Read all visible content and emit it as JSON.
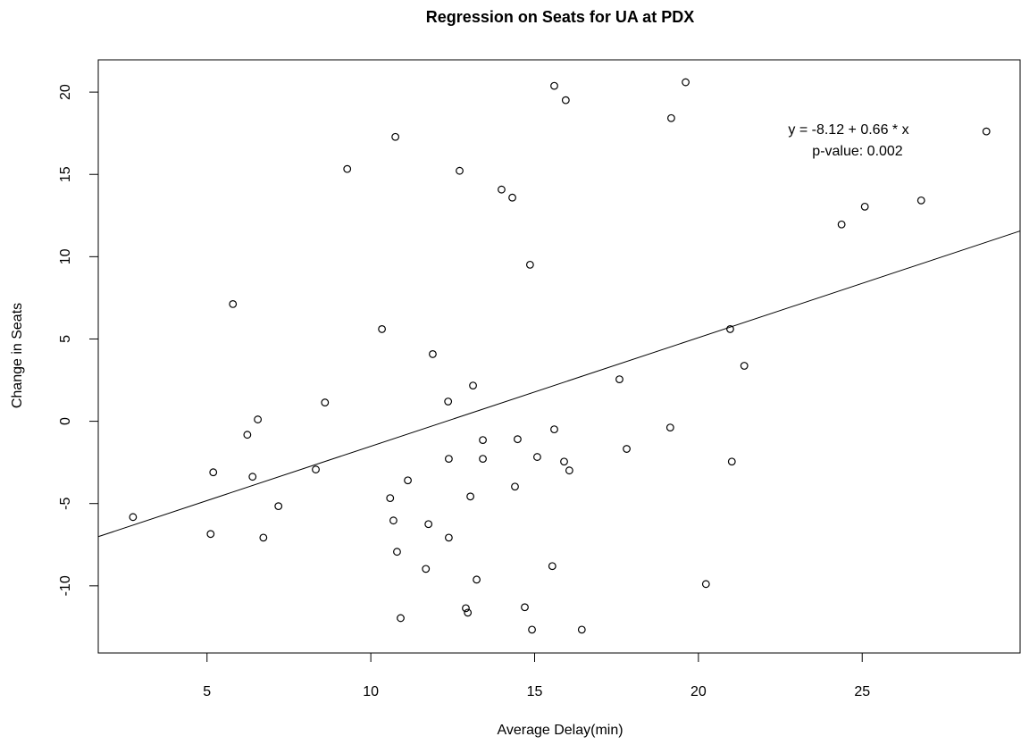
{
  "chart_data": {
    "type": "scatter",
    "title": "Regression on Seats for UA at PDX",
    "x_label": "Average Delay(min)",
    "y_label": "Change in Seats",
    "x": [
      2.74,
      5.11,
      5.19,
      5.79,
      6.23,
      6.39,
      6.55,
      6.72,
      7.18,
      8.32,
      8.6,
      9.28,
      10.34,
      10.59,
      10.69,
      10.75,
      10.8,
      10.91,
      11.13,
      11.68,
      11.76,
      11.89,
      12.36,
      12.38,
      12.38,
      12.71,
      12.9,
      12.96,
      13.04,
      13.12,
      13.23,
      13.42,
      13.42,
      13.99,
      14.32,
      14.4,
      14.48,
      14.7,
      14.86,
      14.92,
      15.08,
      15.54,
      15.6,
      15.6,
      15.9,
      15.95,
      16.06,
      16.44,
      17.59,
      17.81,
      19.14,
      19.17,
      19.61,
      20.23,
      20.97,
      21.02,
      21.4,
      24.37,
      25.08,
      26.8,
      28.79
    ],
    "values": [
      -5.82,
      -6.85,
      -3.1,
      7.12,
      -0.82,
      -3.37,
      0.11,
      -7.07,
      -5.16,
      -2.93,
      1.14,
      15.33,
      5.6,
      -4.67,
      -6.03,
      17.28,
      -7.93,
      -11.96,
      -3.59,
      -8.97,
      -6.25,
      4.08,
      1.2,
      -2.28,
      -7.07,
      15.22,
      -11.36,
      -11.63,
      -4.57,
      2.17,
      -9.62,
      -1.14,
      -2.28,
      14.08,
      13.59,
      -3.97,
      -1.09,
      -11.3,
      9.51,
      -12.66,
      -2.17,
      -8.8,
      20.38,
      -0.49,
      -2.45,
      19.51,
      -2.99,
      -12.66,
      2.55,
      -1.68,
      -0.38,
      18.42,
      20.6,
      -9.89,
      5.6,
      -2.45,
      3.37,
      11.96,
      13.04,
      13.42,
      17.61
    ],
    "color": "#000000",
    "regression": {
      "intercept": -8.12,
      "slope": 0.66
    },
    "annotations": [
      "y = -8.12 + 0.66 * x",
      "p-value: 0.002"
    ],
    "xlim": [
      1.68,
      29.82
    ],
    "ylim": [
      -14.08,
      21.96
    ],
    "xticks": [
      5,
      10,
      15,
      20,
      25
    ],
    "yticks": [
      -10,
      -5,
      0,
      5,
      10,
      15,
      20
    ]
  }
}
